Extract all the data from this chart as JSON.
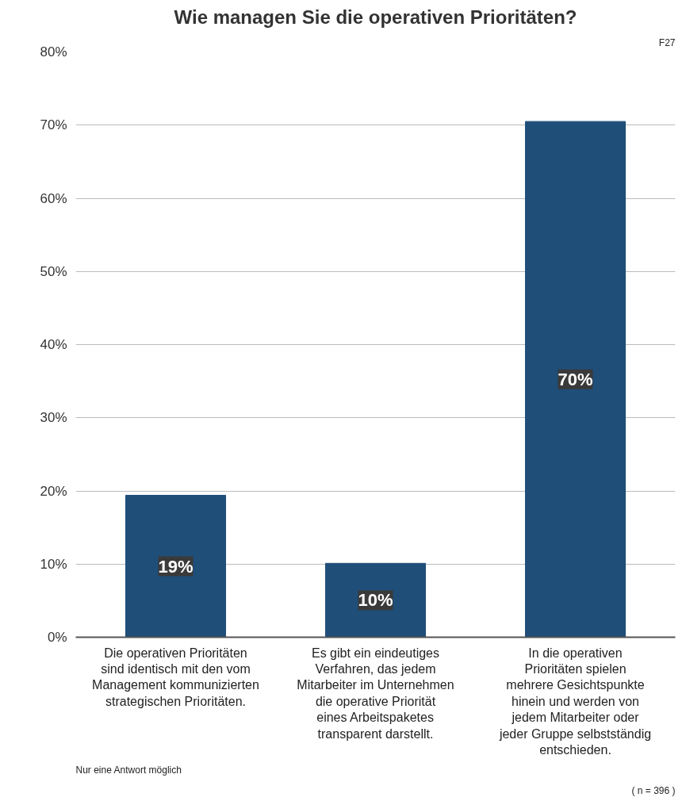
{
  "chart_data": {
    "type": "bar",
    "title": "Wie managen Sie die operativen Prioritäten?",
    "categories": [
      "Die operativen Prioritäten sind identisch mit den vom Management kommunizierten strategischen Prioritäten.",
      "Es gibt ein eindeutiges Verfahren, das jedem Mitarbeiter im Unternehmen die operative Priorität eines Arbeitspaketes transparent darstellt.",
      "In die operativen Prioritäten spielen mehrere Gesichtspunkte hinein und werden von jedem Mitarbeiter oder jeder Gruppe selbstständig entschieden."
    ],
    "values": [
      19.4,
      10.1,
      70.5
    ],
    "color": "#1f4e79",
    "value_labels": [
      "19%",
      "10%",
      "70%"
    ],
    "ylim": [
      0,
      80
    ],
    "yticks": [
      {
        "value": 0,
        "label": "0%"
      },
      {
        "value": 10,
        "label": "10%"
      },
      {
        "value": 20,
        "label": "20%"
      },
      {
        "value": 30,
        "label": "30%"
      },
      {
        "value": 40,
        "label": "40%"
      },
      {
        "value": 50,
        "label": "50%"
      },
      {
        "value": 60,
        "label": "60%"
      },
      {
        "value": 70,
        "label": "70%"
      },
      {
        "value": 80,
        "label": "80%"
      }
    ],
    "grid": "y",
    "annotations": [
      "F27",
      "Nur eine Antwort möglich",
      "( n = 396 )"
    ]
  }
}
